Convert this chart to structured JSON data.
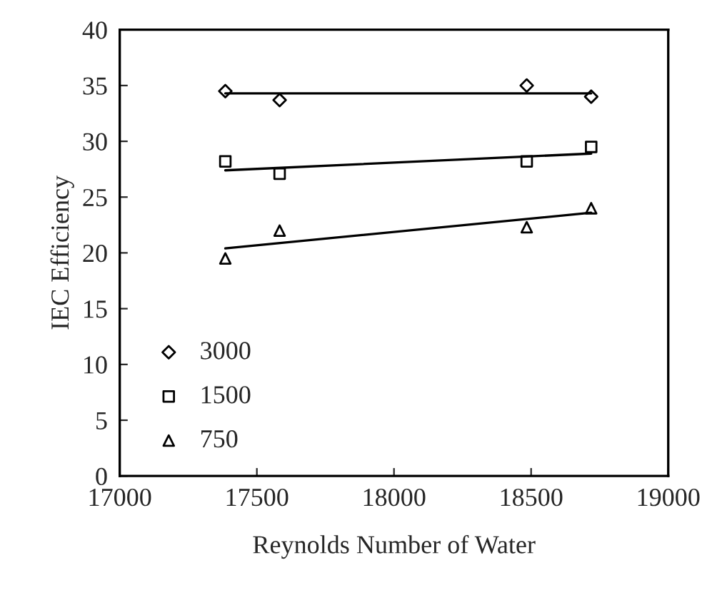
{
  "chart_data": {
    "type": "scatter",
    "xlabel": "Reynolds Number of Water",
    "ylabel": "IEC Efficiency",
    "xlim": [
      17000,
      19000
    ],
    "xticks": [
      17000,
      17500,
      18000,
      18500,
      19000
    ],
    "ylim": [
      0,
      40
    ],
    "yticks": [
      0,
      5,
      10,
      15,
      20,
      25,
      30,
      35,
      40
    ],
    "grid": false,
    "legend": "bottom left",
    "series": [
      {
        "name": "3000",
        "marker": "diamond",
        "color": "#000000",
        "x": [
          17385,
          17583,
          18484,
          18719
        ],
        "values": [
          34.5,
          33.7,
          35.0,
          34.0
        ]
      },
      {
        "name": "1500",
        "marker": "square",
        "color": "#000000",
        "x": [
          17385,
          17583,
          18484,
          18719
        ],
        "values": [
          28.2,
          27.1,
          28.2,
          29.5
        ]
      },
      {
        "name": "750",
        "marker": "triangle",
        "color": "#000000",
        "x": [
          17385,
          17583,
          18484,
          18719
        ],
        "values": [
          19.5,
          22.0,
          22.3,
          24.0
        ]
      },
      {
        "type": "line",
        "color": "#000000",
        "x": [
          17385,
          18719
        ],
        "values": [
          34.3,
          34.3
        ]
      },
      {
        "type": "line",
        "color": "#000000",
        "x": [
          17385,
          18719
        ],
        "values": [
          27.4,
          28.9
        ]
      },
      {
        "type": "line",
        "color": "#000000",
        "x": [
          17385,
          18719
        ],
        "values": [
          20.4,
          23.6
        ]
      }
    ]
  }
}
